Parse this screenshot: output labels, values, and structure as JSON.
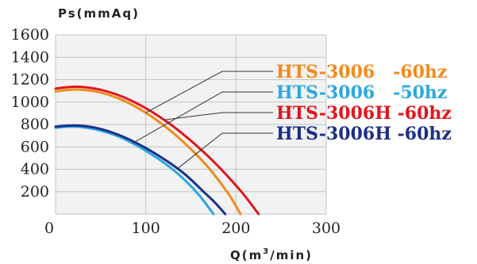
{
  "chart_data": {
    "type": "line",
    "title": "",
    "ylabel": "Ps(mmAq)",
    "xlabel_main": "Q(m",
    "xlabel_sup": "3",
    "xlabel_tail": "/min)",
    "xlim": [
      0,
      300
    ],
    "ylim": [
      0,
      1600
    ],
    "x_ticks": [
      "0",
      "100",
      "200",
      "300"
    ],
    "y_ticks": [
      "1600",
      "1400",
      "1200",
      "1000",
      "800",
      "600",
      "400",
      "200"
    ],
    "grid": true,
    "legend_placement": "right",
    "series": [
      {
        "name": "HTS-3006   -60hz",
        "color": "#f18a1c",
        "points": [
          [
            0,
            1095
          ],
          [
            15,
            1110
          ],
          [
            30,
            1110
          ],
          [
            50,
            1085
          ],
          [
            75,
            1015
          ],
          [
            100,
            905
          ],
          [
            125,
            760
          ],
          [
            150,
            580
          ],
          [
            170,
            410
          ],
          [
            185,
            255
          ],
          [
            195,
            140
          ],
          [
            205,
            0
          ]
        ]
      },
      {
        "name": "HTS-3006   -50hz",
        "color": "#29a8e0",
        "points": [
          [
            0,
            770
          ],
          [
            15,
            780
          ],
          [
            30,
            775
          ],
          [
            50,
            745
          ],
          [
            75,
            675
          ],
          [
            100,
            565
          ],
          [
            125,
            430
          ],
          [
            145,
            290
          ],
          [
            160,
            160
          ],
          [
            175,
            0
          ]
        ]
      },
      {
        "name": "HTS-3006H -60hz",
        "color": "#e1151e",
        "points": [
          [
            0,
            1120
          ],
          [
            15,
            1135
          ],
          [
            30,
            1135
          ],
          [
            50,
            1110
          ],
          [
            75,
            1045
          ],
          [
            100,
            945
          ],
          [
            125,
            815
          ],
          [
            150,
            655
          ],
          [
            175,
            470
          ],
          [
            195,
            300
          ],
          [
            210,
            160
          ],
          [
            225,
            0
          ]
        ]
      },
      {
        "name": "HTS-3006H -60hz",
        "color": "#1d2f87",
        "points": [
          [
            0,
            780
          ],
          [
            15,
            790
          ],
          [
            30,
            788
          ],
          [
            50,
            760
          ],
          [
            75,
            690
          ],
          [
            100,
            590
          ],
          [
            125,
            465
          ],
          [
            145,
            345
          ],
          [
            162,
            215
          ],
          [
            177,
            100
          ],
          [
            188,
            0
          ]
        ]
      }
    ]
  }
}
